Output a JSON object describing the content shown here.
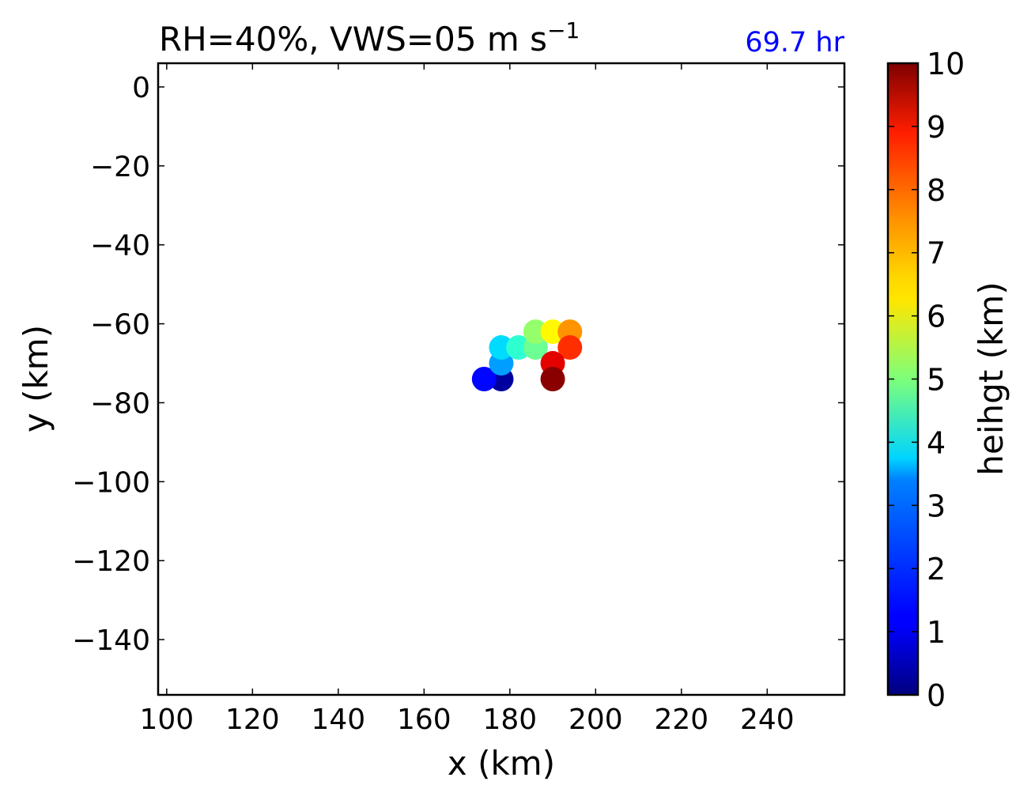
{
  "chart_data": {
    "type": "scatter",
    "title": {
      "main": "RH=40%, VWS=05 m s",
      "superscript": "−1"
    },
    "annotation": {
      "text": "69.7 hr",
      "color": "#0000ff",
      "placement": "top-right above axes"
    },
    "xlabel": "x (km)",
    "ylabel": "y (km)",
    "xlim": [
      98,
      258
    ],
    "ylim": [
      -154,
      6
    ],
    "xticks": [
      100,
      120,
      140,
      160,
      180,
      200,
      220,
      240
    ],
    "yticks": [
      0,
      -20,
      -40,
      -60,
      -80,
      -100,
      -120,
      -140
    ],
    "xtick_labels": [
      "100",
      "120",
      "140",
      "160",
      "180",
      "200",
      "220",
      "240"
    ],
    "ytick_labels": [
      "0",
      "−20",
      "−40",
      "−60",
      "−80",
      "−100",
      "−120",
      "−140"
    ],
    "grid": false,
    "points": [
      {
        "x": 178,
        "y": -74,
        "height": 0.3
      },
      {
        "x": 174,
        "y": -74,
        "height": 1.3
      },
      {
        "x": 178,
        "y": -70,
        "height": 2.8
      },
      {
        "x": 178,
        "y": -66,
        "height": 3.4
      },
      {
        "x": 182,
        "y": -66,
        "height": 4.2
      },
      {
        "x": 186,
        "y": -66,
        "height": 4.8
      },
      {
        "x": 186,
        "y": -62,
        "height": 5.2
      },
      {
        "x": 190,
        "y": -62,
        "height": 6.3
      },
      {
        "x": 194,
        "y": -62,
        "height": 7.3
      },
      {
        "x": 194,
        "y": -66,
        "height": 8.3
      },
      {
        "x": 190,
        "y": -70,
        "height": 9.0
      },
      {
        "x": 190,
        "y": -74,
        "height": 9.9
      }
    ],
    "colorbar": {
      "label": "heihgt (km)",
      "colormap": "jet",
      "range": [
        0,
        10
      ],
      "ticks": [
        0,
        1,
        2,
        3,
        4,
        5,
        6,
        7,
        8,
        9,
        10
      ],
      "tick_labels": [
        "0",
        "1",
        "2",
        "3",
        "4",
        "5",
        "6",
        "7",
        "8",
        "9",
        "10"
      ]
    }
  }
}
